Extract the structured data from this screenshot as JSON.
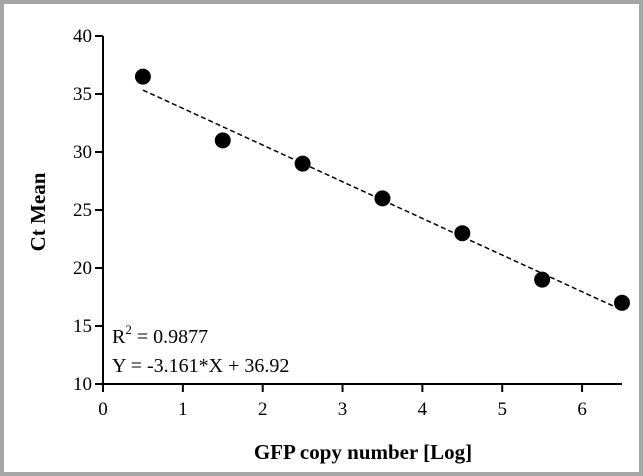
{
  "chart_data": {
    "type": "scatter",
    "xlabel": "GFP copy number [Log]",
    "ylabel": "Ct Mean",
    "xlim": [
      0,
      6.5
    ],
    "ylim": [
      10,
      40
    ],
    "xticks": [
      0,
      1,
      2,
      3,
      4,
      5,
      6
    ],
    "yticks": [
      10,
      15,
      20,
      25,
      30,
      35,
      40
    ],
    "grid": false,
    "points": {
      "x": [
        0.5,
        1.5,
        2.5,
        3.5,
        4.5,
        5.5,
        6.5
      ],
      "y": [
        36.5,
        31.0,
        29.0,
        26.0,
        23.0,
        19.0,
        17.0
      ]
    },
    "fit": {
      "slope": -3.161,
      "intercept": 36.92,
      "x_range": [
        0.5,
        6.5
      ],
      "style": "dashed"
    },
    "annotations": {
      "r2_prefix": "R",
      "r2_sup": "2",
      "r2_value": " = 0.9877",
      "equation": "Y = -3.161*X + 36.92"
    },
    "colors": {
      "marker": "#000000",
      "frame": "#a6a6a6"
    }
  }
}
